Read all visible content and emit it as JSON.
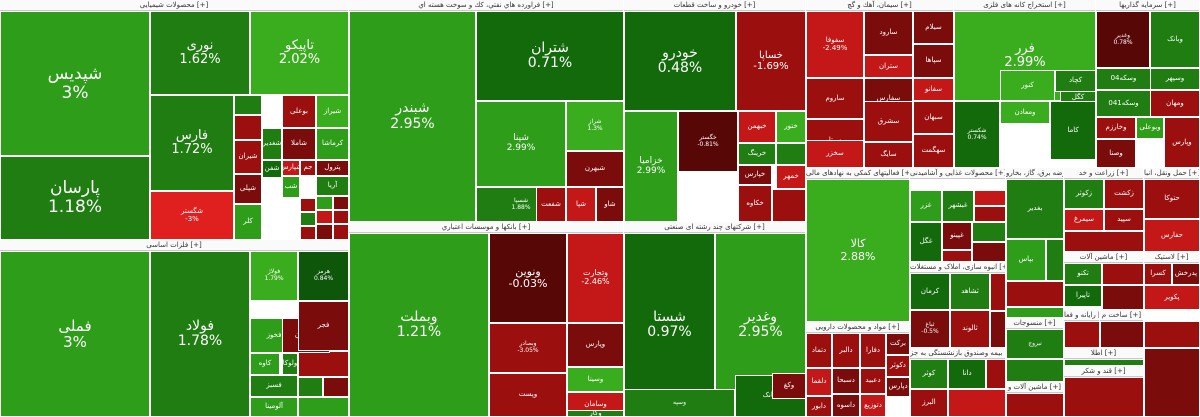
{
  "colors": {
    "g1": "#2e9d1a",
    "g2": "#3aad1e",
    "g3": "#1f7d12",
    "g4": "#136a0b",
    "g5": "#0d560a",
    "r1": "#9b0f0f",
    "r2": "#7a0c0c",
    "r3": "#c41818",
    "r4": "#e01f1f",
    "r5": "#580707"
  },
  "sectors": [
    {
      "title": "محصولات شیمیایی [+]",
      "tiles": [
        {
          "name": "شپدیس",
          "pct": "3%",
          "c": "g1",
          "fs": 17
        },
        {
          "name": "پارسان",
          "pct": "1.18%",
          "c": "g3",
          "fs": 17
        },
        {
          "name": "نوری",
          "pct": "1.62%",
          "c": "g3",
          "fs": 13
        },
        {
          "name": "تاپیکو",
          "pct": "2.02%",
          "c": "g2",
          "fs": 13
        },
        {
          "name": "فارس",
          "pct": "1.72%",
          "c": "g3",
          "fs": 13
        },
        {
          "name": "شگستر",
          "pct": "-3%",
          "c": "r4",
          "fs": 7
        },
        {
          "name": "شیراز",
          "pct": "",
          "c": "g2",
          "fs": 7
        },
        {
          "name": "بوعلی",
          "pct": "",
          "c": "r1",
          "fs": 7
        },
        {
          "name": "کرماشا",
          "pct": "",
          "c": "g1",
          "fs": 7
        },
        {
          "name": "شاملا",
          "pct": "",
          "c": "r2",
          "fs": 7
        },
        {
          "name": "شغدیر",
          "pct": "",
          "c": "g3",
          "fs": 7
        },
        {
          "name": "شفن",
          "pct": "",
          "c": "g4",
          "fs": 7
        },
        {
          "name": "شیران",
          "pct": "",
          "c": "r1",
          "fs": 7
        },
        {
          "name": "شپلی",
          "pct": "",
          "c": "r2",
          "fs": 7
        },
        {
          "name": "شپارس",
          "pct": "",
          "c": "r3",
          "fs": 7
        },
        {
          "name": "جم",
          "pct": "",
          "c": "r1",
          "fs": 7
        },
        {
          "name": "پترول",
          "pct": "",
          "c": "r2",
          "fs": 7
        },
        {
          "name": "کلر",
          "pct": "",
          "c": "g1",
          "fs": 7
        },
        {
          "name": "شب",
          "pct": "",
          "c": "g1",
          "fs": 7
        },
        {
          "name": "آریا",
          "pct": "",
          "c": "g3",
          "fs": 7
        }
      ]
    },
    {
      "title": "فراورده هاي نفتي، كك و سوخت هسته اي [+]",
      "tiles": [
        {
          "name": "شبندر",
          "pct": "2.95%",
          "c": "g1",
          "fs": 14
        },
        {
          "name": "شتران",
          "pct": "0.71%",
          "c": "g4",
          "fs": 14
        },
        {
          "name": "شپنا",
          "pct": "2.99%",
          "c": "g1",
          "fs": 9
        },
        {
          "name": "شراز",
          "pct": "1.3%",
          "c": "g2",
          "fs": 6
        },
        {
          "name": "شبهرن",
          "pct": "",
          "c": "r2",
          "fs": 7
        },
        {
          "name": "شسپا",
          "pct": "1.88%",
          "c": "g3",
          "fs": 6
        },
        {
          "name": "شفعت",
          "pct": "",
          "c": "r1",
          "fs": 7
        },
        {
          "name": "شپا",
          "pct": "",
          "c": "r3",
          "fs": 7
        },
        {
          "name": "شاو",
          "pct": "",
          "c": "r2",
          "fs": 7
        }
      ]
    },
    {
      "title": "خودرو و ساخت قطعات [+]",
      "tiles": [
        {
          "name": "خودرو",
          "pct": "0.48%",
          "c": "g4",
          "fs": 14
        },
        {
          "name": "خساپا",
          "pct": "-1.69%",
          "c": "r1",
          "fs": 10
        },
        {
          "name": "خزامیا",
          "pct": "2.99%",
          "c": "g1",
          "fs": 9
        },
        {
          "name": "خگستر",
          "pct": "-0.81%",
          "c": "r5",
          "fs": 6
        },
        {
          "name": "خبهمن",
          "pct": "",
          "c": "r3",
          "fs": 7
        },
        {
          "name": "ختور",
          "pct": "",
          "c": "g2",
          "fs": 7
        },
        {
          "name": "خپارس",
          "pct": "",
          "c": "r2",
          "fs": 7
        },
        {
          "name": "خمهر",
          "pct": "",
          "c": "r3",
          "fs": 7
        },
        {
          "name": "خرینگ",
          "pct": "",
          "c": "g3",
          "fs": 7
        },
        {
          "name": "خکاوه",
          "pct": "",
          "c": "r1",
          "fs": 7
        }
      ]
    },
    {
      "title": "سیمان، آهك و گچ [+]",
      "tiles": [
        {
          "name": "سفوفا",
          "pct": "-2.49%",
          "c": "r3",
          "fs": 7
        },
        {
          "name": "سارود",
          "pct": "",
          "c": "r2",
          "fs": 7
        },
        {
          "name": "سجام",
          "pct": "",
          "c": "r2",
          "fs": 7
        },
        {
          "name": "ساروم",
          "pct": "",
          "c": "r1",
          "fs": 7
        },
        {
          "name": "سفارس",
          "pct": "",
          "c": "r2",
          "fs": 7
        },
        {
          "name": "سیتا",
          "pct": "",
          "c": "r1",
          "fs": 7
        },
        {
          "name": "ستران",
          "pct": "",
          "c": "r3",
          "fs": 7
        },
        {
          "name": "سشرق",
          "pct": "",
          "c": "r1",
          "fs": 7
        },
        {
          "name": "سپاها",
          "pct": "",
          "c": "r2",
          "fs": 7
        },
        {
          "name": "سخزر",
          "pct": "",
          "c": "r3",
          "fs": 7
        },
        {
          "name": "سایگ",
          "pct": "",
          "c": "r1",
          "fs": 7
        },
        {
          "name": "سبهان",
          "pct": "",
          "c": "r1",
          "fs": 7
        },
        {
          "name": "سهگمت",
          "pct": "",
          "c": "r1",
          "fs": 7
        },
        {
          "name": "سفانو",
          "pct": "",
          "c": "r3",
          "fs": 7
        },
        {
          "name": "سیلام",
          "pct": "",
          "c": "r2",
          "fs": 7
        },
        {
          "name": "سمازن",
          "pct": "",
          "c": "r1",
          "fs": 7
        },
        {
          "name": "سنیر",
          "pct": "",
          "c": "r3",
          "fs": 7
        },
        {
          "name": "سرود",
          "pct": "",
          "c": "r2",
          "fs": 7
        }
      ]
    },
    {
      "title": "استخراج کانه های فلزی [+]",
      "tiles": [
        {
          "name": "فرر",
          "pct": "2.99%",
          "c": "g2",
          "fs": 13
        },
        {
          "name": "کگل",
          "pct": "",
          "c": "g3",
          "fs": 7
        },
        {
          "name": "کچاد",
          "pct": "",
          "c": "g3",
          "fs": 7
        },
        {
          "name": "فولاژ",
          "pct": "",
          "c": "g3",
          "fs": 7
        },
        {
          "name": "کنور",
          "pct": "",
          "c": "g2",
          "fs": 7
        },
        {
          "name": "ومعادن",
          "pct": "",
          "c": "g2",
          "fs": 7
        },
        {
          "name": "کاما",
          "pct": "",
          "c": "g4",
          "fs": 7
        },
        {
          "name": "شکستر",
          "pct": "0.74%",
          "c": "g4",
          "fs": 6
        }
      ]
    },
    {
      "title": "سرمایه گذاریها [+]",
      "tiles": [
        {
          "name": "وغدیر",
          "pct": "0.78%",
          "c": "r5",
          "fs": 6
        },
        {
          "name": "وبانک",
          "pct": "",
          "c": "g3",
          "fs": 7
        },
        {
          "name": "وسکه04",
          "pct": "",
          "c": "g3",
          "fs": 7
        },
        {
          "name": "وسکه041",
          "pct": "",
          "c": "g3",
          "fs": 7
        },
        {
          "name": "وسپهر",
          "pct": "",
          "c": "g3",
          "fs": 7
        },
        {
          "name": "ومهان",
          "pct": "",
          "c": "r1",
          "fs": 7
        },
        {
          "name": "وخارزم",
          "pct": "",
          "c": "r1",
          "fs": 7
        },
        {
          "name": "وبوعلی",
          "pct": "",
          "c": "g1",
          "fs": 7
        },
        {
          "name": "وصنا",
          "pct": "",
          "c": "r2",
          "fs": 7
        },
        {
          "name": "وپارس",
          "pct": "",
          "c": "r1",
          "fs": 7
        }
      ]
    },
    {
      "title": "فلزات اساسی [+]",
      "tiles": [
        {
          "name": "فملی",
          "pct": "3%",
          "c": "g1",
          "fs": 15
        },
        {
          "name": "فولاد",
          "pct": "1.78%",
          "c": "g3",
          "fs": 14
        },
        {
          "name": "فولاژ",
          "pct": "1.79%",
          "c": "g2",
          "fs": 6
        },
        {
          "name": "فخوز",
          "pct": "",
          "c": "g1",
          "fs": 7
        },
        {
          "name": "فسازان",
          "pct": "",
          "c": "r2",
          "fs": 7
        },
        {
          "name": "کاوه",
          "pct": "",
          "c": "g1",
          "fs": 7
        },
        {
          "name": "فسبز",
          "pct": "",
          "c": "g3",
          "fs": 7
        },
        {
          "name": "آلومینا",
          "pct": "",
          "c": "g1",
          "fs": 7
        },
        {
          "name": "ولوکا",
          "pct": "",
          "c": "g3",
          "fs": 7
        },
        {
          "name": "فجر",
          "pct": "",
          "c": "r2",
          "fs": 7
        },
        {
          "name": "هرمز",
          "pct": "0.84%",
          "c": "g5",
          "fs": 6
        }
      ]
    },
    {
      "title": "بانكها و موسسات اعتباري [+]",
      "tiles": [
        {
          "name": "وبملت",
          "pct": "1.21%",
          "c": "g1",
          "fs": 14
        },
        {
          "name": "ونوین",
          "pct": "-0.03%",
          "c": "r5",
          "fs": 11
        },
        {
          "name": "وتجارت",
          "pct": "-2.46%",
          "c": "r3",
          "fs": 8
        },
        {
          "name": "وبصادر",
          "pct": "-3.05%",
          "c": "r1",
          "fs": 6
        },
        {
          "name": "وپارس",
          "pct": "",
          "c": "r2",
          "fs": 7
        },
        {
          "name": "وسینا",
          "pct": "",
          "c": "g2",
          "fs": 7
        },
        {
          "name": "وپست",
          "pct": "",
          "c": "r1",
          "fs": 7
        },
        {
          "name": "وسامان",
          "pct": "",
          "c": "r3",
          "fs": 7
        },
        {
          "name": "وکار",
          "pct": "",
          "c": "g3",
          "fs": 7
        }
      ]
    },
    {
      "title": "شرکتهای چند رشته ای صنعتی [+]",
      "tiles": [
        {
          "name": "شستا",
          "pct": "0.97%",
          "c": "g4",
          "fs": 14
        },
        {
          "name": "وغدیر",
          "pct": "2.95%",
          "c": "g1",
          "fs": 14
        },
        {
          "name": "وبانک",
          "pct": "",
          "c": "g4",
          "fs": 7
        },
        {
          "name": "وکغ",
          "pct": "",
          "c": "r2",
          "fs": 7
        },
        {
          "name": "وسپه",
          "pct": "",
          "c": "g3",
          "fs": 6
        }
      ]
    },
    {
      "title": "فعالیتهای کمکی به نهادهای مالی [+]",
      "tiles": [
        {
          "name": "کالا",
          "pct": "2.88%",
          "c": "g2",
          "fs": 11
        }
      ]
    },
    {
      "title": "مواد و محصولات دارویی [+]",
      "tiles": [
        {
          "name": "دفارا",
          "pct": "",
          "c": "r1",
          "fs": 7
        },
        {
          "name": "برکت",
          "pct": "",
          "c": "r2",
          "fs": 7
        },
        {
          "name": "دتماد",
          "pct": "",
          "c": "r1",
          "fs": 7
        },
        {
          "name": "دالبر",
          "pct": "",
          "c": "r1",
          "fs": 7
        },
        {
          "name": "دلقما",
          "pct": "",
          "c": "r3",
          "fs": 7
        },
        {
          "name": "دسبحا",
          "pct": "",
          "c": "r2",
          "fs": 7
        },
        {
          "name": "دعبید",
          "pct": "",
          "c": "r1",
          "fs": 7
        },
        {
          "name": "دکوثر",
          "pct": "",
          "c": "r1",
          "fs": 7
        },
        {
          "name": "دابور",
          "pct": "",
          "c": "r1",
          "fs": 7
        },
        {
          "name": "داسوه",
          "pct": "",
          "c": "r2",
          "fs": 7
        },
        {
          "name": "دتوزیع",
          "pct": "",
          "c": "r3",
          "fs": 7
        },
        {
          "name": "دپارس",
          "pct": "",
          "c": "r2",
          "fs": 7
        }
      ]
    },
    {
      "title": "محصولات غذایی و آشامیدنی [+]",
      "tiles": [
        {
          "name": "غزر",
          "pct": "",
          "c": "g1",
          "fs": 7
        },
        {
          "name": "غبشهر",
          "pct": "",
          "c": "g3",
          "fs": 7
        },
        {
          "name": "غگل",
          "pct": "",
          "c": "g4",
          "fs": 7
        },
        {
          "name": "غپینو",
          "pct": "",
          "c": "r2",
          "fs": 7
        }
      ]
    },
    {
      "title": "انبوه سازی، املاک و مستغلات [+]",
      "tiles": [
        {
          "name": "کرمان",
          "pct": "",
          "c": "g4",
          "fs": 7
        },
        {
          "name": "ثشاهد",
          "pct": "",
          "c": "g3",
          "fs": 7
        },
        {
          "name": "ثالوند",
          "pct": "",
          "c": "r1",
          "fs": 7
        },
        {
          "name": "وساخت",
          "pct": "",
          "c": "r3",
          "fs": 7
        },
        {
          "name": "ثباغ",
          "pct": "-0.5%",
          "c": "r2",
          "fs": 6
        }
      ]
    },
    {
      "title": "بیمه وصندوق بازنشستگی به جز [+]",
      "tiles": [
        {
          "name": "کوثر",
          "pct": "",
          "c": "g3",
          "fs": 7
        },
        {
          "name": "دانا",
          "pct": "",
          "c": "g4",
          "fs": 7
        },
        {
          "name": "البرز",
          "pct": "",
          "c": "r1",
          "fs": 7
        }
      ]
    },
    {
      "title": "عرضه برق، گاز، بخارو [+]",
      "tiles": [
        {
          "name": "بغدیر",
          "pct": "",
          "c": "g3",
          "fs": 7
        },
        {
          "name": "بپاس",
          "pct": "",
          "c": "g1",
          "fs": 7
        }
      ]
    },
    {
      "title": "ماشین آلات [+]",
      "tiles": [
        {
          "name": "تکنو",
          "pct": "",
          "c": "g3",
          "fs": 7
        },
        {
          "name": "تاپیرا",
          "pct": "",
          "c": "g4",
          "fs": 7
        }
      ]
    },
    {
      "title": "منسوجات [+]",
      "tiles": [
        {
          "name": "نبروج",
          "pct": "",
          "c": "g3",
          "fs": 6
        }
      ]
    },
    {
      "title": "حمل ونقل، انبا [+]",
      "tiles": [
        {
          "name": "حتوکا",
          "pct": "",
          "c": "r1",
          "fs": 7
        },
        {
          "name": "حفارس",
          "pct": "",
          "c": "r3",
          "fs": 7
        }
      ]
    },
    {
      "title": "زراعت و خد [+]",
      "tiles": [
        {
          "name": "زکوثر",
          "pct": "",
          "c": "g3",
          "fs": 7
        },
        {
          "name": "زکشت",
          "pct": "",
          "c": "r1",
          "fs": 7
        },
        {
          "name": "سیمرغ",
          "pct": "",
          "c": "r3",
          "fs": 7
        },
        {
          "name": "سپید",
          "pct": "",
          "c": "r1",
          "fs": 7
        }
      ]
    },
    {
      "title": "لاستیک [+]",
      "tiles": [
        {
          "name": "کسرا",
          "pct": "",
          "c": "r1",
          "fs": 7
        },
        {
          "name": "پکویر",
          "pct": "",
          "c": "r3",
          "fs": 7
        },
        {
          "name": "پدرخش",
          "pct": "",
          "c": "r2",
          "fs": 7
        }
      ]
    },
    {
      "title": "رایانه و فعا [+]",
      "tiles": []
    },
    {
      "title": "ساخت م [+]",
      "tiles": []
    },
    {
      "title": "اطلا [+]",
      "tiles": []
    },
    {
      "title": "قند و شکر [+]",
      "tiles": []
    },
    {
      "title": "ماشین آلات و [+]",
      "tiles": []
    },
    {
      "title": "خرده فرو [+]",
      "tiles": []
    }
  ]
}
